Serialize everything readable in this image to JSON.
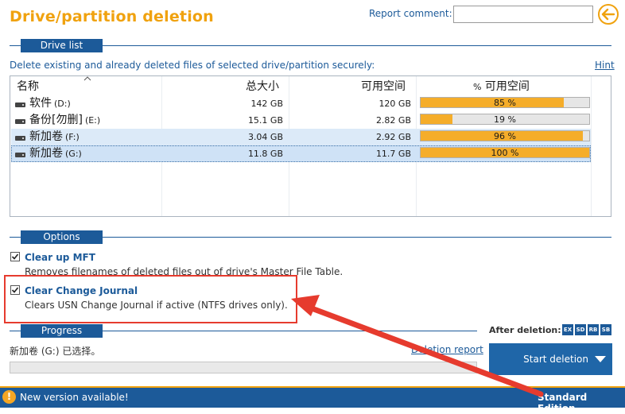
{
  "header": {
    "title": "Drive/partition deletion",
    "report_comment_label": "Report comment:",
    "report_comment_value": "",
    "back_icon": "back-arrow-icon"
  },
  "drive_list": {
    "section_label": "Drive list",
    "description": "Delete existing and already deleted files of selected drive/partition securely:",
    "hint": "Hint",
    "columns": [
      "名称",
      "总大小",
      "可用空间",
      "可用空间"
    ],
    "pct_col_prefix": "%",
    "rows": [
      {
        "name": "软件",
        "letter": "(D:)",
        "total": "142 GB",
        "free": "120 GB",
        "pct": 85,
        "pct_label": "85 %"
      },
      {
        "name": "备份[勿删]",
        "letter": "(E:)",
        "total": "15.1 GB",
        "free": "2.82 GB",
        "pct": 19,
        "pct_label": "19 %"
      },
      {
        "name": "新加卷",
        "letter": "(F:)",
        "total": "3.04 GB",
        "free": "2.92 GB",
        "pct": 96,
        "pct_label": "96 %"
      },
      {
        "name": "新加卷",
        "letter": "(G:)",
        "total": "11.8 GB",
        "free": "11.7 GB",
        "pct": 100,
        "pct_label": "100 %"
      }
    ]
  },
  "options": {
    "section_label": "Options",
    "items": [
      {
        "title": "Clear up MFT",
        "description": "Removes filenames of deleted files out of drive's Master File Table.",
        "checked": true
      },
      {
        "title": "Clear Change Journal",
        "description": "Clears USN Change Journal if active (NTFS drives only).",
        "checked": true
      }
    ]
  },
  "progress": {
    "section_label": "Progress",
    "status": "新加卷 (G:) 已选择。",
    "deletion_report": "Deletion report",
    "value": 0
  },
  "after_deletion": {
    "label": "After deletion:",
    "buttons": [
      "EX",
      "SD",
      "RB",
      "SB"
    ]
  },
  "start_button": "Start deletion",
  "statusbar": {
    "new_version": "New version available!",
    "edition": "Standard Edition"
  },
  "colors": {
    "accent": "#f0a20f",
    "primary": "#1c5a99",
    "bar_fill": "#f5ad2a",
    "annotation": "#e63b2e"
  }
}
